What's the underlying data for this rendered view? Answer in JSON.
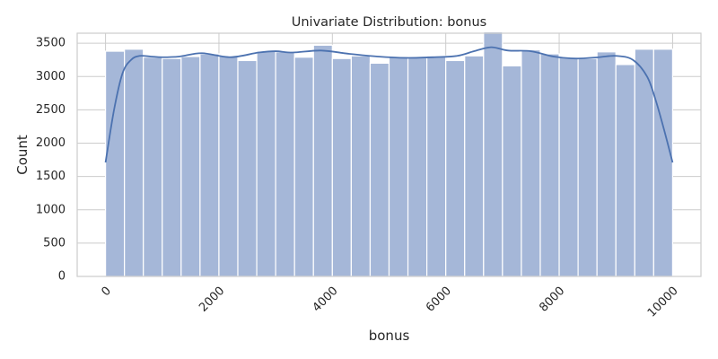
{
  "chart_data": {
    "type": "bar",
    "subtype": "histogram-with-kde",
    "title": "Univariate Distribution: bonus",
    "xlabel": "bonus",
    "ylabel": "Count",
    "xlim": [
      -500,
      10500
    ],
    "ylim": [
      0,
      3650
    ],
    "x_ticks": [
      0,
      2000,
      4000,
      6000,
      8000,
      10000
    ],
    "y_ticks": [
      0,
      500,
      1000,
      1500,
      2000,
      2500,
      3000,
      3500
    ],
    "x_tick_rotation": 45,
    "grid": true,
    "bin_range": [
      0,
      10000
    ],
    "bin_count": 30,
    "values": [
      3380,
      3410,
      3290,
      3270,
      3300,
      3340,
      3310,
      3240,
      3380,
      3370,
      3290,
      3470,
      3270,
      3310,
      3200,
      3300,
      3280,
      3310,
      3240,
      3310,
      3670,
      3160,
      3400,
      3340,
      3290,
      3270,
      3370,
      3180,
      3410,
      3410
    ],
    "kde": {
      "x": [
        0,
        150,
        300,
        450,
        600,
        800,
        1000,
        1300,
        1700,
        2200,
        2700,
        3000,
        3300,
        3800,
        4300,
        4800,
        5300,
        5800,
        6200,
        6500,
        6800,
        7100,
        7500,
        7900,
        8300,
        8700,
        9000,
        9300,
        9550,
        9700,
        9850,
        10000
      ],
      "y": [
        1710,
        2500,
        3050,
        3250,
        3310,
        3300,
        3290,
        3300,
        3350,
        3290,
        3360,
        3380,
        3360,
        3390,
        3340,
        3300,
        3280,
        3290,
        3310,
        3380,
        3440,
        3390,
        3380,
        3300,
        3270,
        3290,
        3310,
        3250,
        3000,
        2650,
        2200,
        1710
      ]
    },
    "colors": {
      "bar_fill": "#a5b7d8",
      "bar_edge": "#ffffff",
      "kde_line": "#4c72b0",
      "grid": "#cccccc",
      "axes_edge": "#cccccc",
      "text": "#262626"
    }
  }
}
